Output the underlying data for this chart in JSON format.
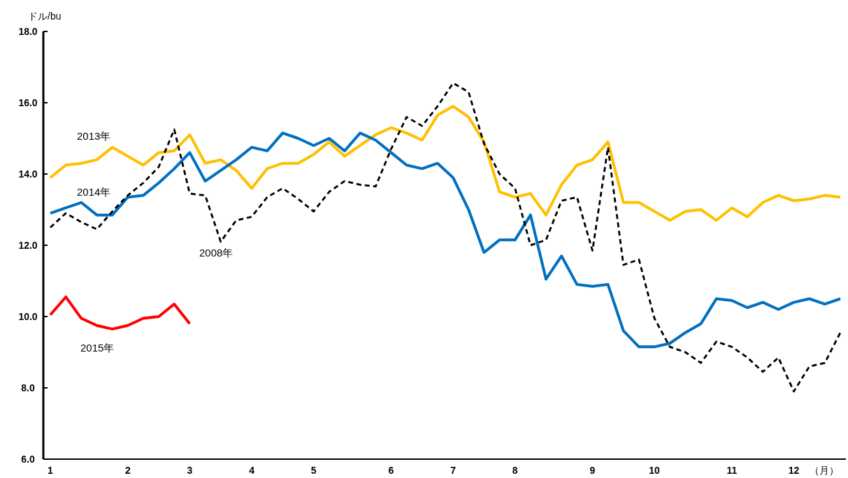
{
  "chart_data": {
    "type": "line",
    "ylabel": "ドル/bu",
    "xlabel": "（月）",
    "categories": [
      "1",
      null,
      null,
      null,
      null,
      "2",
      null,
      null,
      null,
      "3",
      null,
      null,
      null,
      "4",
      null,
      null,
      null,
      "5",
      null,
      null,
      null,
      null,
      "6",
      null,
      null,
      null,
      "7",
      null,
      null,
      null,
      "8",
      null,
      null,
      null,
      null,
      "9",
      null,
      null,
      null,
      "10",
      null,
      null,
      null,
      null,
      "11",
      null,
      null,
      null,
      "12",
      null,
      null,
      null
    ],
    "ylim": [
      6,
      18
    ],
    "yticks": [
      {
        "value": 6,
        "label": "6.0"
      },
      {
        "value": 8,
        "label": "8.0"
      },
      {
        "value": 10,
        "label": "10.0"
      },
      {
        "value": 12,
        "label": "12.0"
      },
      {
        "value": 14,
        "label": "14.0"
      },
      {
        "value": 16,
        "label": "16.0"
      },
      {
        "value": 18,
        "label": "18.0"
      }
    ],
    "grid": false,
    "legend": false,
    "series": [
      {
        "name": "2013年",
        "color": "#ffc000",
        "line_style": "solid",
        "values": [
          13.9,
          14.25,
          14.3,
          14.4,
          14.75,
          14.5,
          14.25,
          14.6,
          14.65,
          15.1,
          14.3,
          14.4,
          14.1,
          13.6,
          14.15,
          14.3,
          14.3,
          14.55,
          14.9,
          14.5,
          14.8,
          15.1,
          15.3,
          15.15,
          14.95,
          15.65,
          15.9,
          15.6,
          14.9,
          13.5,
          13.35,
          13.45,
          12.85,
          13.7,
          14.25,
          14.4,
          14.9,
          13.2,
          13.2,
          12.95,
          12.7,
          12.95,
          13.0,
          12.7,
          13.05,
          12.8,
          13.2,
          13.4,
          13.25,
          13.3,
          13.4,
          13.35
        ]
      },
      {
        "name": "2014年",
        "color": "#0070c0",
        "line_style": "solid",
        "values": [
          12.9,
          13.05,
          13.2,
          12.85,
          12.85,
          13.35,
          13.4,
          13.75,
          14.15,
          14.6,
          13.8,
          14.1,
          14.4,
          14.75,
          14.65,
          15.15,
          15.0,
          14.8,
          15.0,
          14.65,
          15.15,
          14.95,
          14.6,
          14.25,
          14.15,
          14.3,
          13.9,
          13.0,
          11.8,
          12.15,
          12.15,
          12.85,
          11.05,
          11.7,
          10.9,
          10.85,
          10.9,
          9.6,
          9.15,
          9.15,
          9.25,
          9.55,
          9.8,
          10.5,
          10.45,
          10.25,
          10.4,
          10.2,
          10.4,
          10.5,
          10.35,
          10.5
        ]
      },
      {
        "name": "2008年",
        "color": "#000000",
        "line_style": "dashed",
        "values": [
          12.5,
          12.9,
          12.65,
          12.45,
          12.95,
          13.4,
          13.75,
          14.2,
          15.25,
          13.45,
          13.4,
          12.1,
          12.7,
          12.8,
          13.35,
          13.6,
          13.3,
          12.95,
          13.5,
          13.8,
          13.7,
          13.65,
          14.7,
          15.6,
          15.35,
          15.9,
          16.55,
          16.3,
          14.85,
          14.0,
          13.6,
          12.0,
          12.15,
          13.25,
          13.35,
          11.85,
          14.75,
          11.45,
          11.6,
          9.95,
          9.15,
          9.0,
          8.7,
          9.3,
          9.15,
          8.85,
          8.45,
          8.85,
          7.9,
          8.6,
          8.7,
          9.55
        ]
      },
      {
        "name": "2015年",
        "color": "#ff0000",
        "line_style": "solid",
        "values": [
          10.05,
          10.55,
          9.95,
          9.75,
          9.65,
          9.75,
          9.95,
          10.0,
          10.35,
          9.8,
          null,
          null,
          null,
          null,
          null,
          null,
          null,
          null,
          null,
          null,
          null,
          null,
          null,
          null,
          null,
          null,
          null,
          null,
          null,
          null,
          null,
          null,
          null,
          null,
          null,
          null,
          null,
          null,
          null,
          null,
          null,
          null,
          null,
          null,
          null,
          null,
          null,
          null,
          null,
          null,
          null,
          null
        ]
      }
    ]
  }
}
